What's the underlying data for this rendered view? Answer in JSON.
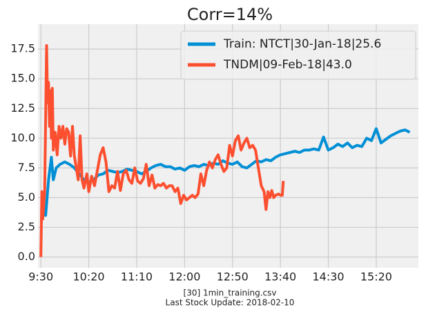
{
  "chart_data": {
    "type": "line",
    "title": "Corr=14%",
    "footer": [
      "[30] 1min_training.csv",
      "Last Stock Update: 2018-02-10"
    ],
    "xlim": [
      "9:27",
      "16:04"
    ],
    "xticks": [
      "9:30",
      "10:20",
      "11:10",
      "12:00",
      "12:50",
      "13:40",
      "14:30",
      "15:20"
    ],
    "ylim": [
      -0.9,
      19.6
    ],
    "yticks": [
      "0.0",
      "2.5",
      "5.0",
      "7.5",
      "10.0",
      "12.5",
      "15.0",
      "17.5"
    ],
    "grid": true,
    "legend": "upper right",
    "series": [
      {
        "name": "Train: NTCT|30-Jan-18|25.6",
        "color": "#008fd5",
        "x": [
          "9:32",
          "9:35",
          "9:38",
          "9:41",
          "9:43",
          "9:46",
          "9:50",
          "9:55",
          "10:00",
          "10:05",
          "10:10",
          "10:15",
          "10:20",
          "10:25",
          "10:30",
          "10:35",
          "10:40",
          "10:45",
          "10:50",
          "10:55",
          "11:00",
          "11:05",
          "11:10",
          "11:15",
          "11:20",
          "11:25",
          "11:30",
          "11:35",
          "11:40",
          "11:45",
          "11:50",
          "11:55",
          "12:00",
          "12:05",
          "12:10",
          "12:15",
          "12:20",
          "12:25",
          "12:30",
          "12:35",
          "12:40",
          "12:45",
          "12:50",
          "12:55",
          "13:00",
          "13:05",
          "13:10",
          "13:15",
          "13:20",
          "13:25",
          "13:30",
          "13:35",
          "13:40",
          "13:45",
          "13:50",
          "13:55",
          "14:00",
          "14:05",
          "14:10",
          "14:15",
          "14:20",
          "14:25",
          "14:30",
          "14:35",
          "14:40",
          "14:45",
          "14:50",
          "14:55",
          "15:00",
          "15:05",
          "15:10",
          "15:15",
          "15:20",
          "15:25",
          "15:30",
          "15:35",
          "15:40",
          "15:45",
          "15:50",
          "15:55"
        ],
        "values": [
          4.5,
          3.5,
          6.5,
          8.4,
          6.5,
          7.5,
          7.8,
          8.0,
          7.8,
          7.5,
          7.0,
          6.5,
          6.3,
          6.5,
          6.9,
          7.0,
          7.3,
          7.2,
          7.1,
          7.2,
          7.4,
          7.3,
          7.2,
          7.0,
          7.2,
          7.5,
          7.7,
          7.8,
          7.6,
          7.6,
          7.4,
          7.5,
          7.3,
          7.6,
          7.7,
          7.6,
          7.8,
          7.7,
          7.9,
          7.8,
          8.1,
          7.9,
          7.8,
          8.0,
          7.6,
          7.5,
          7.8,
          8.1,
          8.0,
          8.2,
          8.1,
          8.4,
          8.6,
          8.7,
          8.8,
          8.9,
          8.8,
          9.0,
          9.0,
          9.1,
          9.0,
          10.1,
          9.0,
          9.2,
          9.5,
          9.3,
          9.6,
          9.2,
          9.4,
          9.3,
          10.0,
          9.8,
          10.8,
          9.6,
          9.9,
          10.2,
          10.4,
          10.6,
          10.7,
          10.5
        ]
      },
      {
        "name": "TNDM|09-Feb-18|43.0",
        "color": "#fc4f30",
        "x": [
          "9:30",
          "9:31",
          "9:32",
          "9:34",
          "9:36",
          "9:37",
          "9:38",
          "9:39",
          "9:40",
          "9:41",
          "9:42",
          "9:43",
          "9:45",
          "9:47",
          "9:49",
          "9:51",
          "9:53",
          "9:55",
          "9:57",
          "9:59",
          "10:01",
          "10:03",
          "10:05",
          "10:07",
          "10:09",
          "10:11",
          "10:13",
          "10:15",
          "10:18",
          "10:20",
          "10:23",
          "10:26",
          "10:29",
          "10:32",
          "10:35",
          "10:38",
          "10:41",
          "10:44",
          "10:47",
          "10:50",
          "10:53",
          "10:56",
          "10:59",
          "11:02",
          "11:05",
          "11:08",
          "11:11",
          "11:14",
          "11:17",
          "11:20",
          "11:23",
          "11:26",
          "11:29",
          "11:32",
          "11:35",
          "11:38",
          "11:41",
          "11:44",
          "11:47",
          "11:50",
          "11:53",
          "11:56",
          "11:59",
          "12:02",
          "12:05",
          "12:08",
          "12:11",
          "12:14",
          "12:17",
          "12:20",
          "12:23",
          "12:26",
          "12:29",
          "12:32",
          "12:35",
          "12:38",
          "12:41",
          "12:44",
          "12:47",
          "12:50",
          "12:53",
          "12:56",
          "12:59",
          "13:02",
          "13:05",
          "13:08",
          "13:11",
          "13:14",
          "13:17",
          "13:20",
          "13:23",
          "13:25",
          "13:27",
          "13:29",
          "13:31",
          "13:33",
          "13:35",
          "13:38",
          "13:40",
          "13:42",
          "13:43"
        ],
        "values": [
          0.0,
          5.5,
          3.2,
          5.5,
          17.8,
          13.0,
          14.7,
          11.0,
          14.0,
          10.0,
          14.2,
          9.0,
          10.5,
          8.6,
          11.0,
          10.0,
          11.0,
          9.5,
          10.8,
          10.5,
          8.5,
          11.0,
          8.5,
          7.5,
          6.5,
          10.2,
          6.5,
          5.8,
          7.0,
          5.5,
          6.8,
          6.0,
          7.3,
          8.6,
          9.2,
          8.0,
          5.5,
          6.0,
          5.8,
          7.2,
          5.6,
          7.0,
          7.3,
          6.5,
          6.2,
          7.5,
          6.4,
          6.2,
          6.6,
          7.8,
          6.0,
          6.9,
          5.8,
          6.1,
          6.0,
          6.2,
          5.8,
          6.0,
          6.0,
          5.5,
          5.8,
          4.5,
          5.2,
          4.8,
          5.0,
          5.2,
          5.0,
          5.3,
          7.0,
          6.0,
          7.3,
          8.0,
          7.5,
          8.2,
          8.6,
          7.8,
          7.2,
          7.5,
          9.4,
          8.5,
          9.8,
          10.2,
          9.0,
          9.6,
          10.0,
          9.2,
          9.4,
          9.0,
          7.5,
          6.0,
          5.5,
          4.0,
          5.5,
          5.0,
          5.6,
          5.0,
          5.2,
          5.3,
          5.2,
          5.2,
          6.4
        ]
      }
    ]
  }
}
